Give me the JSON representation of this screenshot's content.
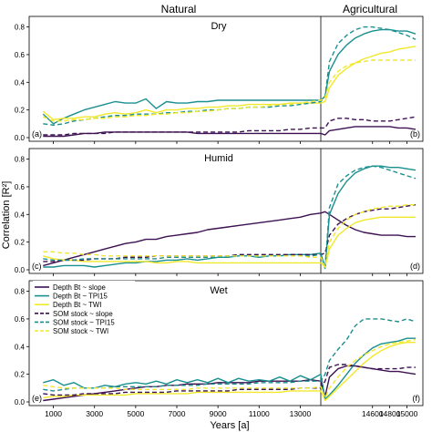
{
  "section_labels": {
    "left": "Natural",
    "right": "Agricultural"
  },
  "y_axis_label": "Correlation [R²]",
  "x_axis_label": "Years [a]",
  "legend": [
    {
      "name": "Depth Bt ~ slope",
      "color": "#3d1152",
      "dash": false
    },
    {
      "name": "Depth Bt ~ TPI15",
      "color": "#1a8f8f",
      "dash": false
    },
    {
      "name": "Depth Bt ~ TWI",
      "color": "#f2e82a",
      "dash": false
    },
    {
      "name": "SOM stock ~ slope",
      "color": "#3d1152",
      "dash": true
    },
    {
      "name": "SOM stock ~ TPI15",
      "color": "#1a8f8f",
      "dash": true
    },
    {
      "name": "SOM stock ~ TWI",
      "color": "#f2e82a",
      "dash": true
    }
  ],
  "chart_data": [
    {
      "type": "line",
      "title": "Dry",
      "panel_left_label": "(a)",
      "panel_right_label": "(b)",
      "xlabel": "Years [a]",
      "ylabel": "Correlation [R²]",
      "xlim": [
        0,
        15500
      ],
      "ylim": [
        0,
        0.85
      ],
      "x_ticks": [
        1000,
        3000,
        5000,
        7000,
        9000,
        11000,
        13000,
        14600,
        14800,
        15000
      ],
      "x_tick_labels": [
        "1000",
        "3000",
        "5000",
        "7000",
        "9000",
        "11000",
        "13000",
        "14600",
        "14800",
        "15000"
      ],
      "y_ticks": [
        0.0,
        0.2,
        0.4,
        0.6,
        0.8
      ],
      "y_tick_labels": [
        "0.0",
        "0.2",
        "0.4",
        "0.6",
        "0.8"
      ],
      "x": [
        500,
        1000,
        1500,
        2000,
        2500,
        3000,
        3500,
        4000,
        4500,
        5000,
        5500,
        6000,
        6500,
        7000,
        7500,
        8000,
        8500,
        9000,
        9500,
        10000,
        10500,
        11000,
        11500,
        12000,
        12500,
        13000,
        13500,
        14000,
        14050,
        14100,
        14200,
        14300,
        14400,
        14500,
        14600,
        14700,
        14800,
        14900,
        15000,
        15100
      ],
      "series": [
        {
          "name": "Depth Bt ~ slope",
          "values": [
            0.01,
            0.01,
            0.01,
            0.02,
            0.03,
            0.03,
            0.04,
            0.04,
            0.04,
            0.04,
            0.04,
            0.04,
            0.04,
            0.04,
            0.04,
            0.03,
            0.03,
            0.03,
            0.03,
            0.03,
            0.03,
            0.03,
            0.03,
            0.03,
            0.03,
            0.03,
            0.03,
            0.03,
            0.02,
            0.05,
            0.06,
            0.07,
            0.08,
            0.08,
            0.08,
            0.08,
            0.08,
            0.07,
            0.07,
            0.06
          ]
        },
        {
          "name": "Depth Bt ~ TPI15",
          "values": [
            0.17,
            0.1,
            0.14,
            0.17,
            0.2,
            0.22,
            0.24,
            0.26,
            0.25,
            0.25,
            0.28,
            0.21,
            0.26,
            0.25,
            0.25,
            0.26,
            0.26,
            0.27,
            0.27,
            0.27,
            0.27,
            0.27,
            0.27,
            0.27,
            0.27,
            0.27,
            0.27,
            0.27,
            0.3,
            0.48,
            0.6,
            0.67,
            0.72,
            0.75,
            0.77,
            0.78,
            0.78,
            0.77,
            0.77,
            0.75
          ]
        },
        {
          "name": "Depth Bt ~ TWI",
          "values": [
            0.19,
            0.13,
            0.14,
            0.14,
            0.15,
            0.15,
            0.17,
            0.18,
            0.17,
            0.18,
            0.2,
            0.18,
            0.2,
            0.2,
            0.21,
            0.21,
            0.22,
            0.22,
            0.23,
            0.23,
            0.24,
            0.24,
            0.24,
            0.24,
            0.25,
            0.25,
            0.25,
            0.25,
            0.26,
            0.36,
            0.45,
            0.5,
            0.54,
            0.57,
            0.59,
            0.61,
            0.62,
            0.64,
            0.65,
            0.66
          ]
        },
        {
          "name": "SOM stock ~ slope",
          "values": [
            0.02,
            0.02,
            0.02,
            0.03,
            0.03,
            0.03,
            0.03,
            0.04,
            0.04,
            0.04,
            0.04,
            0.04,
            0.04,
            0.04,
            0.04,
            0.04,
            0.04,
            0.04,
            0.04,
            0.04,
            0.05,
            0.05,
            0.05,
            0.05,
            0.06,
            0.06,
            0.07,
            0.07,
            0.07,
            0.12,
            0.14,
            0.14,
            0.13,
            0.13,
            0.12,
            0.12,
            0.12,
            0.13,
            0.14,
            0.15
          ]
        },
        {
          "name": "SOM stock ~ TPI15",
          "values": [
            0.1,
            0.09,
            0.1,
            0.12,
            0.13,
            0.14,
            0.15,
            0.16,
            0.16,
            0.17,
            0.17,
            0.17,
            0.18,
            0.18,
            0.19,
            0.19,
            0.2,
            0.2,
            0.21,
            0.21,
            0.22,
            0.22,
            0.22,
            0.23,
            0.23,
            0.24,
            0.25,
            0.26,
            0.3,
            0.55,
            0.68,
            0.74,
            0.78,
            0.8,
            0.8,
            0.79,
            0.78,
            0.76,
            0.74,
            0.71
          ]
        },
        {
          "name": "SOM stock ~ TWI",
          "values": [
            0.15,
            0.12,
            0.12,
            0.13,
            0.13,
            0.14,
            0.14,
            0.15,
            0.15,
            0.16,
            0.16,
            0.17,
            0.17,
            0.18,
            0.18,
            0.19,
            0.19,
            0.2,
            0.21,
            0.21,
            0.22,
            0.22,
            0.23,
            0.24,
            0.24,
            0.25,
            0.26,
            0.27,
            0.29,
            0.4,
            0.48,
            0.52,
            0.54,
            0.55,
            0.56,
            0.56,
            0.56,
            0.56,
            0.56,
            0.56
          ]
        }
      ]
    },
    {
      "type": "line",
      "title": "Humid",
      "panel_left_label": "(c)",
      "panel_right_label": "(d)",
      "xlabel": "Years [a]",
      "ylabel": "Correlation [R²]",
      "xlim": [
        0,
        15500
      ],
      "ylim": [
        0,
        0.85
      ],
      "x_ticks": [
        1000,
        3000,
        5000,
        7000,
        9000,
        11000,
        13000,
        14600,
        14800,
        15000
      ],
      "x_tick_labels": [
        "1000",
        "3000",
        "5000",
        "7000",
        "9000",
        "11000",
        "13000",
        "14600",
        "14800",
        "15000"
      ],
      "y_ticks": [
        0.0,
        0.2,
        0.4,
        0.6,
        0.8
      ],
      "y_tick_labels": [
        "0.0",
        "0.2",
        "0.4",
        "0.6",
        "0.8"
      ],
      "x": [
        500,
        1000,
        1500,
        2000,
        2500,
        3000,
        3500,
        4000,
        4500,
        5000,
        5500,
        6000,
        6500,
        7000,
        7500,
        8000,
        8500,
        9000,
        9500,
        10000,
        10500,
        11000,
        11500,
        12000,
        12500,
        13000,
        13500,
        14000,
        14050,
        14100,
        14200,
        14300,
        14400,
        14500,
        14600,
        14700,
        14800,
        14900,
        15000,
        15100
      ],
      "series": [
        {
          "name": "Depth Bt ~ slope",
          "values": [
            0.03,
            0.05,
            0.07,
            0.09,
            0.11,
            0.13,
            0.15,
            0.17,
            0.19,
            0.2,
            0.22,
            0.22,
            0.24,
            0.25,
            0.26,
            0.27,
            0.29,
            0.3,
            0.31,
            0.32,
            0.33,
            0.34,
            0.35,
            0.36,
            0.37,
            0.38,
            0.4,
            0.41,
            0.42,
            0.4,
            0.36,
            0.32,
            0.29,
            0.27,
            0.26,
            0.25,
            0.25,
            0.25,
            0.24,
            0.24
          ]
        },
        {
          "name": "Depth Bt ~ TPI15",
          "values": [
            0.02,
            0.02,
            0.03,
            0.03,
            0.03,
            0.02,
            0.03,
            0.04,
            0.05,
            0.05,
            0.06,
            0.06,
            0.07,
            0.07,
            0.08,
            0.07,
            0.08,
            0.09,
            0.09,
            0.1,
            0.1,
            0.09,
            0.1,
            0.1,
            0.11,
            0.11,
            0.11,
            0.12,
            0.01,
            0.4,
            0.55,
            0.64,
            0.7,
            0.73,
            0.75,
            0.75,
            0.74,
            0.74,
            0.73,
            0.72
          ]
        },
        {
          "name": "Depth Bt ~ TWI",
          "values": [
            0.1,
            0.08,
            0.07,
            0.07,
            0.06,
            0.06,
            0.06,
            0.06,
            0.06,
            0.06,
            0.06,
            0.05,
            0.05,
            0.06,
            0.06,
            0.05,
            0.05,
            0.05,
            0.05,
            0.05,
            0.05,
            0.05,
            0.05,
            0.05,
            0.05,
            0.05,
            0.05,
            0.05,
            0.02,
            0.15,
            0.25,
            0.3,
            0.34,
            0.36,
            0.37,
            0.38,
            0.38,
            0.38,
            0.38,
            0.38
          ]
        },
        {
          "name": "SOM stock ~ slope",
          "values": [
            0.06,
            0.06,
            0.07,
            0.07,
            0.07,
            0.08,
            0.08,
            0.08,
            0.09,
            0.09,
            0.09,
            0.1,
            0.1,
            0.1,
            0.1,
            0.1,
            0.1,
            0.1,
            0.1,
            0.11,
            0.11,
            0.11,
            0.11,
            0.11,
            0.11,
            0.11,
            0.11,
            0.11,
            0.12,
            0.25,
            0.33,
            0.37,
            0.4,
            0.42,
            0.43,
            0.44,
            0.44,
            0.45,
            0.46,
            0.47
          ]
        },
        {
          "name": "SOM stock ~ TPI15",
          "values": [
            0.08,
            0.07,
            0.07,
            0.07,
            0.08,
            0.08,
            0.08,
            0.08,
            0.08,
            0.08,
            0.08,
            0.08,
            0.09,
            0.09,
            0.09,
            0.09,
            0.09,
            0.09,
            0.1,
            0.1,
            0.1,
            0.1,
            0.1,
            0.1,
            0.1,
            0.1,
            0.1,
            0.11,
            0.02,
            0.45,
            0.62,
            0.68,
            0.72,
            0.74,
            0.75,
            0.74,
            0.72,
            0.7,
            0.68,
            0.66
          ]
        },
        {
          "name": "SOM stock ~ TWI",
          "values": [
            0.13,
            0.13,
            0.12,
            0.12,
            0.11,
            0.11,
            0.1,
            0.1,
            0.1,
            0.1,
            0.1,
            0.1,
            0.1,
            0.1,
            0.1,
            0.1,
            0.1,
            0.1,
            0.1,
            0.1,
            0.1,
            0.1,
            0.1,
            0.1,
            0.1,
            0.1,
            0.09,
            0.09,
            0.02,
            0.2,
            0.3,
            0.36,
            0.4,
            0.42,
            0.44,
            0.45,
            0.46,
            0.46,
            0.47,
            0.47
          ]
        }
      ]
    },
    {
      "type": "line",
      "title": "Wet",
      "panel_left_label": "(e)",
      "panel_right_label": "(f)",
      "xlabel": "Years [a]",
      "ylabel": "Correlation [R²]",
      "xlim": [
        0,
        15500
      ],
      "ylim": [
        0,
        0.85
      ],
      "x_ticks": [
        1000,
        3000,
        5000,
        7000,
        9000,
        11000,
        13000,
        14600,
        14800,
        15000
      ],
      "x_tick_labels": [
        "1000",
        "3000",
        "5000",
        "7000",
        "9000",
        "11000",
        "13000",
        "14600",
        "14800",
        "15000"
      ],
      "y_ticks": [
        0.0,
        0.2,
        0.4,
        0.6,
        0.8
      ],
      "y_tick_labels": [
        "0.0",
        "0.2",
        "0.4",
        "0.6",
        "0.8"
      ],
      "x": [
        500,
        1000,
        1500,
        2000,
        2500,
        3000,
        3500,
        4000,
        4500,
        5000,
        5500,
        6000,
        6500,
        7000,
        7500,
        8000,
        8500,
        9000,
        9500,
        10000,
        10500,
        11000,
        11500,
        12000,
        12500,
        13000,
        13500,
        14000,
        14050,
        14100,
        14200,
        14300,
        14400,
        14500,
        14600,
        14700,
        14800,
        14900,
        15000,
        15100
      ],
      "series": [
        {
          "name": "Depth Bt ~ slope",
          "values": [
            0.01,
            0.02,
            0.03,
            0.04,
            0.05,
            0.06,
            0.07,
            0.08,
            0.09,
            0.1,
            0.11,
            0.11,
            0.12,
            0.12,
            0.13,
            0.13,
            0.13,
            0.14,
            0.14,
            0.14,
            0.14,
            0.15,
            0.15,
            0.15,
            0.15,
            0.15,
            0.16,
            0.15,
            0.04,
            0.18,
            0.24,
            0.26,
            0.26,
            0.25,
            0.24,
            0.23,
            0.22,
            0.22,
            0.21,
            0.2
          ]
        },
        {
          "name": "Depth Bt ~ TPI15",
          "values": [
            0.14,
            0.16,
            0.12,
            0.14,
            0.1,
            0.1,
            0.12,
            0.11,
            0.13,
            0.14,
            0.13,
            0.15,
            0.13,
            0.16,
            0.14,
            0.16,
            0.14,
            0.17,
            0.14,
            0.17,
            0.15,
            0.16,
            0.15,
            0.18,
            0.15,
            0.19,
            0.16,
            0.2,
            0.02,
            0.05,
            0.12,
            0.2,
            0.28,
            0.34,
            0.39,
            0.42,
            0.43,
            0.44,
            0.46,
            0.46
          ]
        },
        {
          "name": "Depth Bt ~ TWI",
          "values": [
            0.03,
            0.04,
            0.04,
            0.05,
            0.05,
            0.05,
            0.05,
            0.05,
            0.05,
            0.06,
            0.06,
            0.06,
            0.06,
            0.06,
            0.06,
            0.07,
            0.07,
            0.07,
            0.07,
            0.07,
            0.07,
            0.07,
            0.07,
            0.07,
            0.08,
            0.08,
            0.08,
            0.08,
            0.01,
            0.04,
            0.1,
            0.16,
            0.22,
            0.28,
            0.33,
            0.37,
            0.4,
            0.42,
            0.43,
            0.43
          ]
        },
        {
          "name": "SOM stock ~ slope",
          "values": [
            0.06,
            0.05,
            0.05,
            0.05,
            0.06,
            0.06,
            0.06,
            0.06,
            0.07,
            0.07,
            0.07,
            0.07,
            0.07,
            0.08,
            0.08,
            0.08,
            0.08,
            0.08,
            0.08,
            0.09,
            0.09,
            0.09,
            0.09,
            0.09,
            0.09,
            0.1,
            0.1,
            0.1,
            0.15,
            0.25,
            0.27,
            0.27,
            0.26,
            0.25,
            0.24,
            0.24,
            0.24,
            0.24,
            0.25,
            0.25
          ]
        },
        {
          "name": "SOM stock ~ TPI15",
          "values": [
            0.09,
            0.08,
            0.09,
            0.1,
            0.1,
            0.1,
            0.1,
            0.11,
            0.11,
            0.11,
            0.11,
            0.11,
            0.12,
            0.12,
            0.12,
            0.12,
            0.13,
            0.13,
            0.13,
            0.13,
            0.13,
            0.14,
            0.14,
            0.14,
            0.14,
            0.15,
            0.15,
            0.15,
            0.2,
            0.3,
            0.38,
            0.45,
            0.55,
            0.6,
            0.6,
            0.6,
            0.59,
            0.58,
            0.6,
            0.58
          ]
        },
        {
          "name": "SOM stock ~ TWI",
          "values": [
            0.12,
            0.11,
            0.1,
            0.1,
            0.1,
            0.1,
            0.1,
            0.1,
            0.09,
            0.09,
            0.09,
            0.09,
            0.09,
            0.09,
            0.09,
            0.1,
            0.1,
            0.1,
            0.1,
            0.1,
            0.1,
            0.1,
            0.1,
            0.1,
            0.1,
            0.1,
            0.1,
            0.11,
            0.03,
            0.1,
            0.18,
            0.25,
            0.3,
            0.34,
            0.37,
            0.4,
            0.42,
            0.43,
            0.44,
            0.45
          ]
        }
      ]
    }
  ]
}
